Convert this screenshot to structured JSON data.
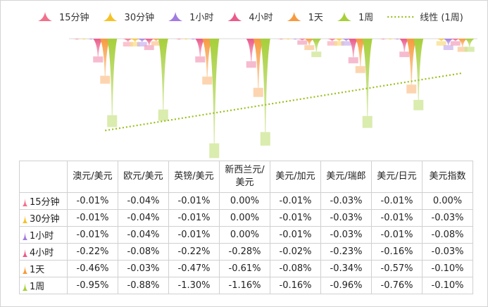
{
  "chart_data": {
    "type": "bar",
    "title": "",
    "xlabel": "",
    "ylabel": "",
    "categories": [
      "澳元/美元",
      "欧元/美元",
      "英镑/美元",
      "新西兰元/美元",
      "美元/加元",
      "美元/瑞郎",
      "美元/日元",
      "美元指数"
    ],
    "ylim": [
      -1.4,
      0.0
    ],
    "grid": false,
    "legend_position": "top",
    "series": [
      {
        "name": "15分钟",
        "color": "#f2708a",
        "values": [
          -0.01,
          -0.04,
          -0.01,
          0.0,
          -0.01,
          -0.03,
          -0.01,
          0.0
        ],
        "labels": [
          "-0.01%",
          "-0.04%",
          "-0.01%",
          "0.00%",
          "-0.01%",
          "-0.03%",
          "-0.01%",
          "0.00%"
        ]
      },
      {
        "name": "30分钟",
        "color": "#f5c226",
        "values": [
          -0.01,
          -0.04,
          -0.01,
          0.0,
          -0.01,
          -0.03,
          -0.01,
          -0.03
        ],
        "labels": [
          "-0.01%",
          "-0.04%",
          "-0.01%",
          "0.00%",
          "-0.01%",
          "-0.03%",
          "-0.01%",
          "-0.03%"
        ]
      },
      {
        "name": "1小时",
        "color": "#a27be0",
        "values": [
          -0.01,
          -0.04,
          -0.01,
          0.0,
          -0.01,
          -0.03,
          -0.01,
          -0.08
        ],
        "labels": [
          "-0.01%",
          "-0.04%",
          "-0.01%",
          "0.00%",
          "-0.01%",
          "-0.03%",
          "-0.01%",
          "-0.08%"
        ]
      },
      {
        "name": "4小时",
        "color": "#ea5a8a",
        "values": [
          -0.22,
          -0.08,
          -0.22,
          -0.28,
          -0.02,
          -0.23,
          -0.16,
          -0.03
        ],
        "labels": [
          "-0.22%",
          "-0.08%",
          "-0.22%",
          "-0.28%",
          "-0.02%",
          "-0.23%",
          "-0.16%",
          "-0.03%"
        ]
      },
      {
        "name": "1天",
        "color": "#f79a3e",
        "values": [
          -0.46,
          -0.03,
          -0.47,
          -0.61,
          -0.08,
          -0.34,
          -0.57,
          -0.1
        ],
        "labels": [
          "-0.46%",
          "-0.03%",
          "-0.47%",
          "-0.61%",
          "-0.08%",
          "-0.34%",
          "-0.57%",
          "-0.10%"
        ]
      },
      {
        "name": "1周",
        "color": "#a6cf3a",
        "values": [
          -0.95,
          -0.88,
          -1.3,
          -1.16,
          -0.16,
          -0.96,
          -0.76,
          -0.1
        ],
        "labels": [
          "-0.95%",
          "-0.88%",
          "-1.30%",
          "-1.16%",
          "-0.16%",
          "-0.96%",
          "-0.76%",
          "-0.10%"
        ]
      }
    ],
    "trendline": {
      "name": "线性 (1周)",
      "color": "#9bbf1f",
      "style": "dotted",
      "of_series": "1周"
    }
  }
}
